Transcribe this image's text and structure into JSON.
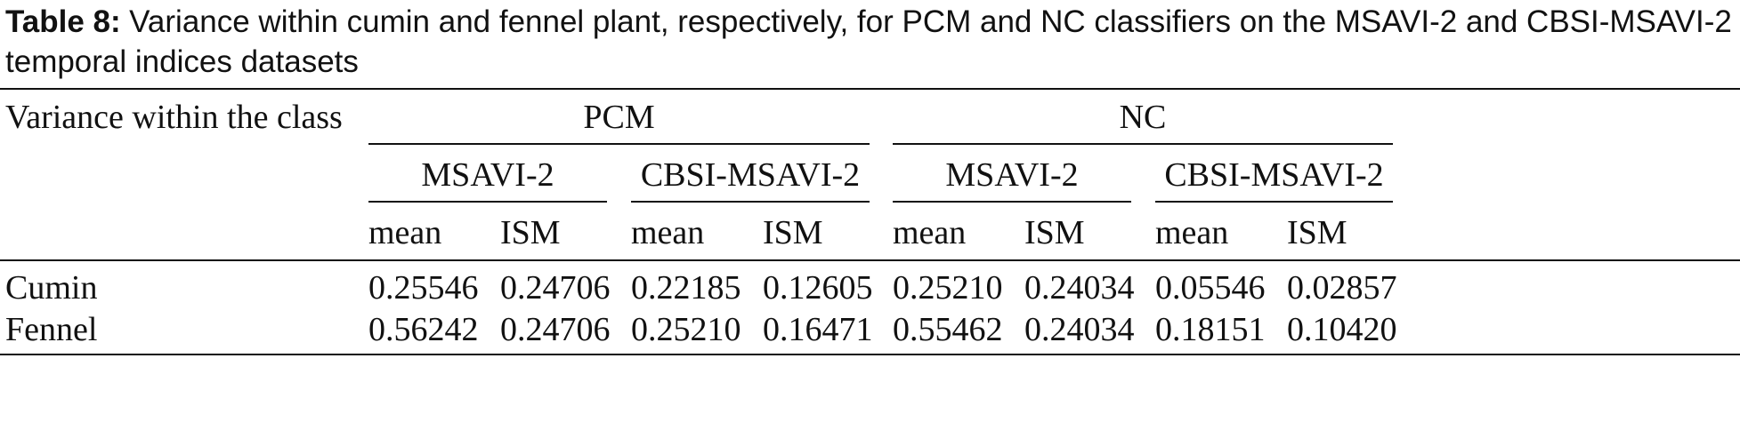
{
  "caption": {
    "label": "Table 8:",
    "title": "Variance within cumin and fennel plant, respectively, for PCM and NC classifiers on the MSAVI-2 and CBSI-MSAVI-2 temporal indices datasets"
  },
  "table": {
    "row_header": "Variance within the class",
    "groups": [
      {
        "name": "PCM",
        "subgroups": [
          {
            "name": "MSAVI-2",
            "cols": [
              "mean",
              "ISM"
            ]
          },
          {
            "name": "CBSI-MSAVI-2",
            "cols": [
              "mean",
              "ISM"
            ]
          }
        ]
      },
      {
        "name": "NC",
        "subgroups": [
          {
            "name": "MSAVI-2",
            "cols": [
              "mean",
              "ISM"
            ]
          },
          {
            "name": "CBSI-MSAVI-2",
            "cols": [
              "mean",
              "ISM"
            ]
          }
        ]
      }
    ],
    "rows": [
      {
        "label": "Cumin",
        "values": [
          "0.25546",
          "0.24706",
          "0.22185",
          "0.12605",
          "0.25210",
          "0.24034",
          "0.05546",
          "0.02857"
        ]
      },
      {
        "label": "Fennel",
        "values": [
          "0.56242",
          "0.24706",
          "0.25210",
          "0.16471",
          "0.55462",
          "0.24034",
          "0.18151",
          "0.10420"
        ]
      }
    ]
  }
}
